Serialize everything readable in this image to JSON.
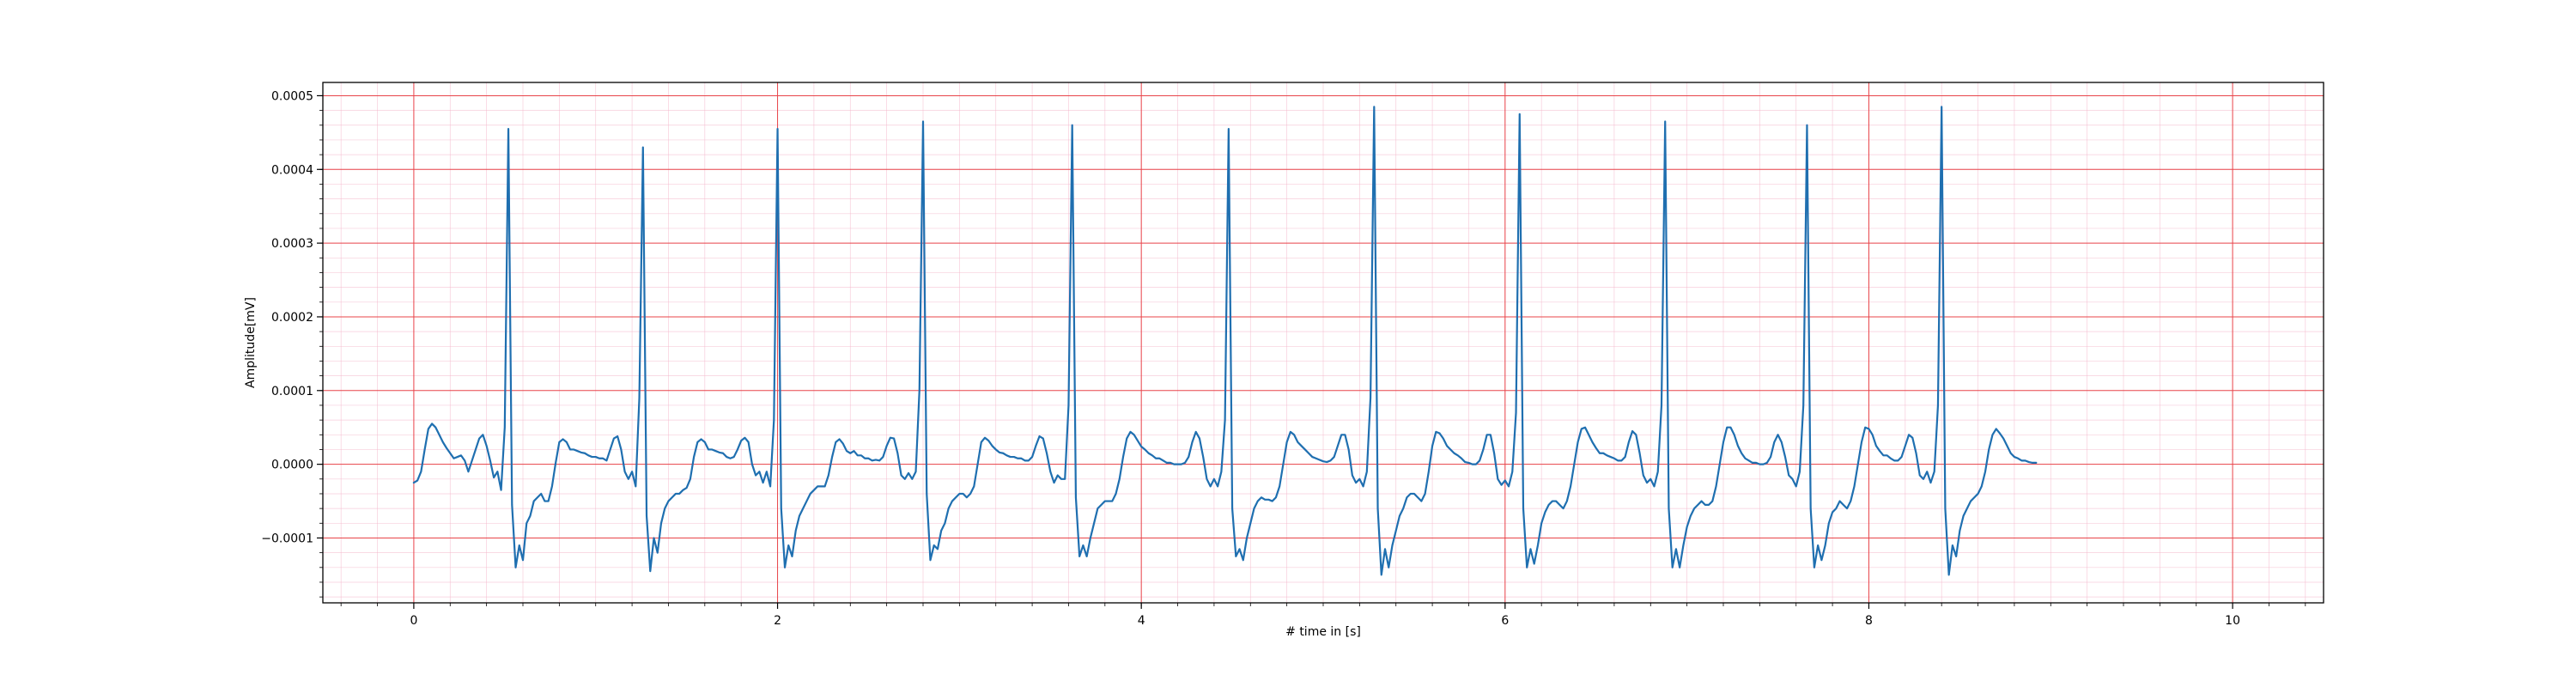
{
  "chart_data": {
    "type": "line",
    "title": "",
    "xlabel": "# time in [s]",
    "ylabel": "Amplitude[mV]",
    "xlim": [
      -0.5,
      10.5
    ],
    "ylim": [
      -0.000188,
      0.000518
    ],
    "x_ticks": [
      0,
      2,
      4,
      6,
      8,
      10
    ],
    "x_tick_labels": [
      "0",
      "2",
      "4",
      "6",
      "8",
      "10"
    ],
    "y_ticks": [
      -0.0001,
      0.0,
      0.0001,
      0.0002,
      0.0003,
      0.0004,
      0.0005
    ],
    "y_tick_labels": [
      "−0.0001",
      "0.0000",
      "0.0001",
      "0.0002",
      "0.0003",
      "0.0004",
      "0.0005"
    ],
    "grid": {
      "major": true,
      "minor": true,
      "major_color": "#e8454a",
      "minor_color": "#f3b8cc",
      "minor_x_step": 0.2,
      "minor_y_step": 2e-05
    },
    "line_color": "#1f6fb0",
    "series": [
      {
        "sample_rate_hz": 50,
        "x_start": 0,
        "values": [
          -2.5e-05,
          -2.2e-05,
          -1e-05,
          2e-05,
          4.8e-05,
          5.5e-05,
          5e-05,
          4e-05,
          3e-05,
          2.2e-05,
          1.5e-05,
          8e-06,
          1e-05,
          1.2e-05,
          5e-06,
          -1e-05,
          5e-06,
          2e-05,
          3.5e-05,
          4e-05,
          2.5e-05,
          5e-06,
          -1.8e-05,
          -1e-05,
          -3.5e-05,
          5e-05,
          0.000455,
          -5.5e-05,
          -0.00014,
          -0.00011,
          -0.00013,
          -8e-05,
          -7e-05,
          -5e-05,
          -4.5e-05,
          -4e-05,
          -5e-05,
          -5e-05,
          -3e-05,
          2e-06,
          3e-05,
          3.4e-05,
          3e-05,
          2e-05,
          2e-05,
          1.8e-05,
          1.6e-05,
          1.5e-05,
          1.2e-05,
          1e-05,
          1e-05,
          8e-06,
          8e-06,
          5e-06,
          2e-05,
          3.5e-05,
          3.8e-05,
          2e-05,
          -1e-05,
          -2e-05,
          -1e-05,
          -3e-05,
          9e-05,
          0.00043,
          -7e-05,
          -0.000145,
          -0.0001,
          -0.00012,
          -8e-05,
          -6e-05,
          -5e-05,
          -4.5e-05,
          -4e-05,
          -4e-05,
          -3.5e-05,
          -3.2e-05,
          -2e-05,
          1e-05,
          3e-05,
          3.4e-05,
          3e-05,
          2e-05,
          2e-05,
          1.8e-05,
          1.6e-05,
          1.5e-05,
          1e-05,
          8e-06,
          1e-05,
          2e-05,
          3.2e-05,
          3.6e-05,
          3e-05,
          0.0,
          -1.5e-05,
          -1e-05,
          -2.5e-05,
          -1e-05,
          -3e-05,
          6e-05,
          0.000455,
          -6e-05,
          -0.00014,
          -0.00011,
          -0.000125,
          -9e-05,
          -7e-05,
          -6e-05,
          -5e-05,
          -4e-05,
          -3.5e-05,
          -3e-05,
          -3e-05,
          -3e-05,
          -1.5e-05,
          1e-05,
          3e-05,
          3.4e-05,
          2.8e-05,
          1.8e-05,
          1.5e-05,
          1.8e-05,
          1.2e-05,
          1.2e-05,
          8e-06,
          8e-06,
          5e-06,
          6e-06,
          5e-06,
          1e-05,
          2.5e-05,
          3.6e-05,
          3.5e-05,
          1.5e-05,
          -1.5e-05,
          -2e-05,
          -1.2e-05,
          -2e-05,
          -1e-05,
          0.0001,
          0.000465,
          -4e-05,
          -0.00013,
          -0.00011,
          -0.000115,
          -9e-05,
          -8e-05,
          -6e-05,
          -5e-05,
          -4.5e-05,
          -4e-05,
          -4e-05,
          -4.5e-05,
          -4e-05,
          -3e-05,
          0.0,
          3e-05,
          3.6e-05,
          3.2e-05,
          2.5e-05,
          2e-05,
          1.6e-05,
          1.5e-05,
          1.2e-05,
          1e-05,
          1e-05,
          8e-06,
          8e-06,
          5e-06,
          5e-06,
          1e-05,
          2.5e-05,
          3.8e-05,
          3.5e-05,
          1.5e-05,
          -1e-05,
          -2.5e-05,
          -1.5e-05,
          -2e-05,
          -2e-05,
          8e-05,
          0.00046,
          -4.5e-05,
          -0.000125,
          -0.00011,
          -0.000125,
          -0.0001,
          -8e-05,
          -6e-05,
          -5.5e-05,
          -5e-05,
          -5e-05,
          -5e-05,
          -4e-05,
          -2e-05,
          1e-05,
          3.5e-05,
          4.4e-05,
          4e-05,
          3.2e-05,
          2.4e-05,
          2e-05,
          1.5e-05,
          1.2e-05,
          8e-06,
          8e-06,
          5e-06,
          2e-06,
          2e-06,
          0.0,
          0.0,
          0.0,
          2e-06,
          1e-05,
          3e-05,
          4.4e-05,
          3.5e-05,
          1e-05,
          -2e-05,
          -3e-05,
          -2e-05,
          -3e-05,
          -1e-05,
          6e-05,
          0.000455,
          -6e-05,
          -0.000125,
          -0.000115,
          -0.00013,
          -0.0001,
          -8e-05,
          -6e-05,
          -5e-05,
          -4.5e-05,
          -4.8e-05,
          -4.8e-05,
          -5e-05,
          -4.5e-05,
          -3e-05,
          0.0,
          3e-05,
          4.4e-05,
          4e-05,
          3e-05,
          2.5e-05,
          2e-05,
          1.5e-05,
          1e-05,
          8e-06,
          6e-06,
          4e-06,
          3e-06,
          5e-06,
          1e-05,
          2.5e-05,
          4e-05,
          4e-05,
          2e-05,
          -1.5e-05,
          -2.5e-05,
          -2e-05,
          -3e-05,
          -1e-05,
          9e-05,
          0.000485,
          -6e-05,
          -0.00015,
          -0.000115,
          -0.00014,
          -0.00011,
          -9e-05,
          -7e-05,
          -6e-05,
          -4.5e-05,
          -4e-05,
          -4e-05,
          -4.5e-05,
          -5e-05,
          -4e-05,
          -1e-05,
          2.5e-05,
          4.4e-05,
          4.2e-05,
          3.5e-05,
          2.5e-05,
          2e-05,
          1.5e-05,
          1.2e-05,
          8e-06,
          3e-06,
          2e-06,
          0.0,
          0.0,
          5e-06,
          2e-05,
          4e-05,
          4e-05,
          1.5e-05,
          -2e-05,
          -2.8e-05,
          -2.2e-05,
          -3e-05,
          -1e-05,
          7e-05,
          0.000475,
          -6e-05,
          -0.00014,
          -0.000115,
          -0.000135,
          -0.00011,
          -8e-05,
          -6.5e-05,
          -5.5e-05,
          -5e-05,
          -5e-05,
          -5.5e-05,
          -6e-05,
          -5e-05,
          -3e-05,
          0.0,
          3e-05,
          4.8e-05,
          5e-05,
          4e-05,
          3e-05,
          2.2e-05,
          1.5e-05,
          1.5e-05,
          1.2e-05,
          1e-05,
          8e-06,
          5e-06,
          5e-06,
          1e-05,
          3e-05,
          4.5e-05,
          4e-05,
          1.5e-05,
          -1.5e-05,
          -2.5e-05,
          -2e-05,
          -3e-05,
          -1e-05,
          8e-05,
          0.000465,
          -6e-05,
          -0.00014,
          -0.000115,
          -0.00014,
          -0.00011,
          -8.5e-05,
          -7e-05,
          -6e-05,
          -5.5e-05,
          -5e-05,
          -5.5e-05,
          -5.5e-05,
          -5e-05,
          -3e-05,
          0.0,
          3e-05,
          5e-05,
          5e-05,
          4e-05,
          2.5e-05,
          1.5e-05,
          8e-06,
          5e-06,
          2e-06,
          2e-06,
          0.0,
          0.0,
          2e-06,
          1e-05,
          3e-05,
          4e-05,
          3e-05,
          1e-05,
          -1.5e-05,
          -2e-05,
          -3e-05,
          -1e-05,
          8e-05,
          0.00046,
          -6e-05,
          -0.00014,
          -0.00011,
          -0.00013,
          -0.00011,
          -8e-05,
          -6.5e-05,
          -6e-05,
          -5e-05,
          -5.5e-05,
          -6e-05,
          -5e-05,
          -3e-05,
          0.0,
          3e-05,
          5e-05,
          4.8e-05,
          4e-05,
          2.5e-05,
          1.8e-05,
          1.2e-05,
          1.2e-05,
          8e-06,
          5e-06,
          5e-06,
          1e-05,
          2.5e-05,
          4e-05,
          3.6e-05,
          1.5e-05,
          -1.5e-05,
          -2e-05,
          -1e-05,
          -2.5e-05,
          -1e-05,
          8e-05,
          0.000485,
          -6e-05,
          -0.00015,
          -0.00011,
          -0.000125,
          -9e-05,
          -7e-05,
          -6e-05,
          -5e-05,
          -4.5e-05,
          -4e-05,
          -3e-05,
          -1e-05,
          2e-05,
          4e-05,
          4.8e-05,
          4.2e-05,
          3.5e-05,
          2.5e-05,
          1.5e-05,
          1e-05,
          8e-06,
          5e-06,
          5e-06,
          3e-06,
          2e-06,
          2e-06
        ]
      }
    ]
  }
}
